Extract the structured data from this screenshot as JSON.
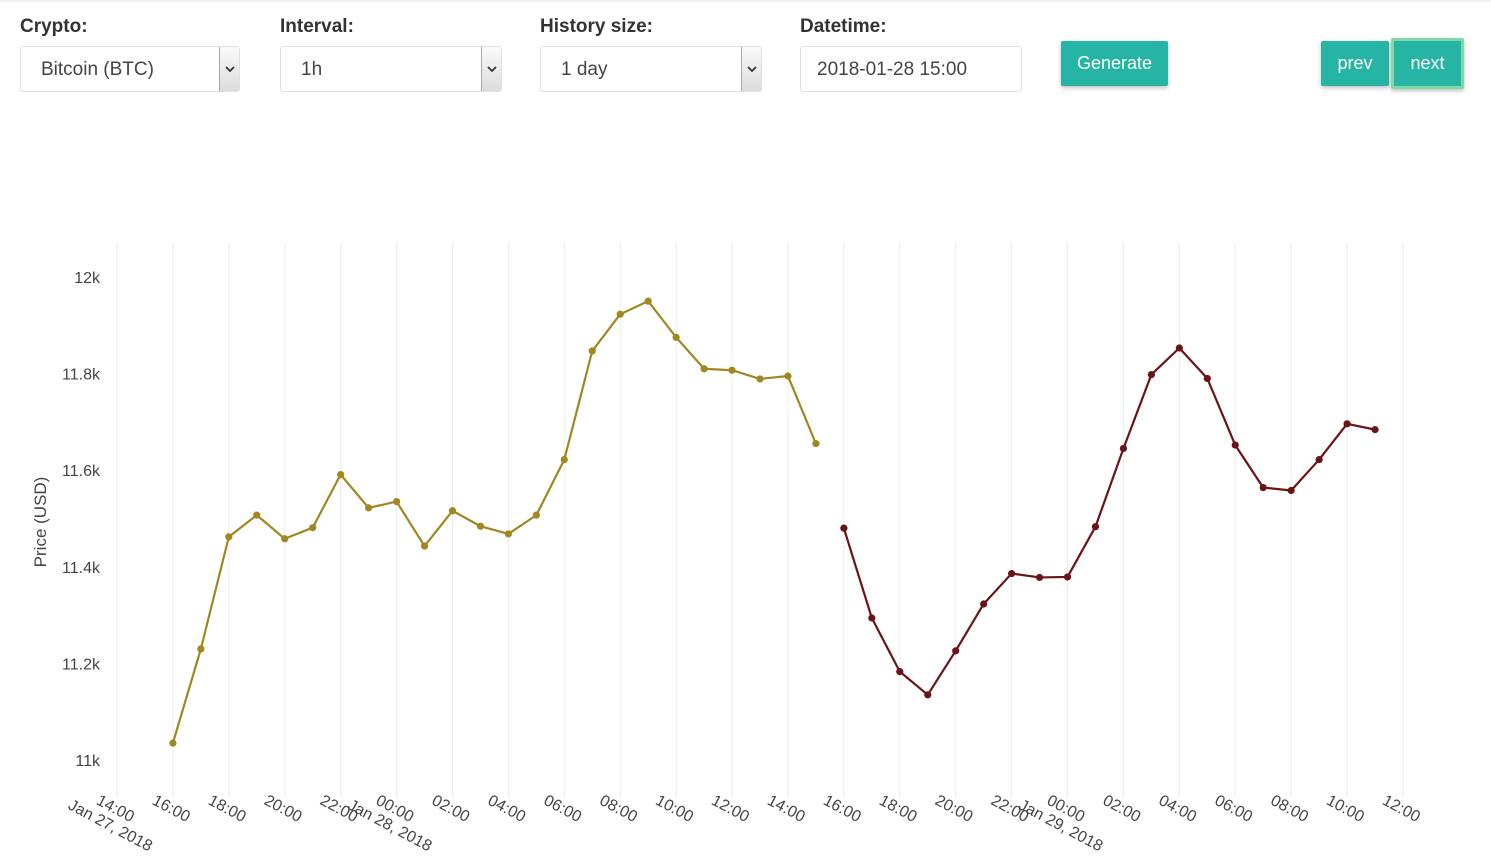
{
  "controls": {
    "crypto": {
      "label": "Crypto:",
      "value": "Bitcoin (BTC)"
    },
    "interval": {
      "label": "Interval:",
      "value": "1h"
    },
    "history": {
      "label": "History size:",
      "value": "1 day"
    },
    "datetime": {
      "label": "Datetime:",
      "value": "2018-01-28 15:00"
    },
    "generate_label": "Generate",
    "prev_label": "prev",
    "next_label": "next"
  },
  "colors": {
    "accent": "#26b5a4",
    "next_border": "#7ed9a6",
    "history_series": "#a08722",
    "future_series": "#6b1416"
  },
  "chart_data": {
    "type": "line",
    "ylabel": "Price (USD)",
    "xlabel": "",
    "ylim": [
      10950,
      12060
    ],
    "yticks": [
      {
        "value": 11000,
        "label": "11k"
      },
      {
        "value": 11200,
        "label": "11.2k"
      },
      {
        "value": 11400,
        "label": "11.4k"
      },
      {
        "value": 11600,
        "label": "11.6k"
      },
      {
        "value": 11800,
        "label": "11.8k"
      },
      {
        "value": 12000,
        "label": "12k"
      }
    ],
    "xlim": [
      "2018-01-27 13:00",
      "2018-01-29 13:00"
    ],
    "xticks": [
      {
        "value": "2018-01-27 14:00",
        "label": "14:00",
        "sublabel": "Jan 27, 2018"
      },
      {
        "value": "2018-01-27 16:00",
        "label": "16:00"
      },
      {
        "value": "2018-01-27 18:00",
        "label": "18:00"
      },
      {
        "value": "2018-01-27 20:00",
        "label": "20:00"
      },
      {
        "value": "2018-01-27 22:00",
        "label": "22:00"
      },
      {
        "value": "2018-01-28 00:00",
        "label": "00:00",
        "sublabel": "Jan 28, 2018"
      },
      {
        "value": "2018-01-28 02:00",
        "label": "02:00"
      },
      {
        "value": "2018-01-28 04:00",
        "label": "04:00"
      },
      {
        "value": "2018-01-28 06:00",
        "label": "06:00"
      },
      {
        "value": "2018-01-28 08:00",
        "label": "08:00"
      },
      {
        "value": "2018-01-28 10:00",
        "label": "10:00"
      },
      {
        "value": "2018-01-28 12:00",
        "label": "12:00"
      },
      {
        "value": "2018-01-28 14:00",
        "label": "14:00"
      },
      {
        "value": "2018-01-28 16:00",
        "label": "16:00"
      },
      {
        "value": "2018-01-28 18:00",
        "label": "18:00"
      },
      {
        "value": "2018-01-28 20:00",
        "label": "20:00"
      },
      {
        "value": "2018-01-28 22:00",
        "label": "22:00"
      },
      {
        "value": "2018-01-29 00:00",
        "label": "00:00",
        "sublabel": "Jan 29, 2018"
      },
      {
        "value": "2018-01-29 02:00",
        "label": "02:00"
      },
      {
        "value": "2018-01-29 04:00",
        "label": "04:00"
      },
      {
        "value": "2018-01-29 06:00",
        "label": "06:00"
      },
      {
        "value": "2018-01-29 08:00",
        "label": "08:00"
      },
      {
        "value": "2018-01-29 10:00",
        "label": "10:00"
      },
      {
        "value": "2018-01-29 12:00",
        "label": "12:00"
      }
    ],
    "grid": "vertical",
    "series": [
      {
        "color": "#a08722",
        "x": [
          "2018-01-27 16:00",
          "2018-01-27 17:00",
          "2018-01-27 18:00",
          "2018-01-27 19:00",
          "2018-01-27 20:00",
          "2018-01-27 21:00",
          "2018-01-27 22:00",
          "2018-01-27 23:00",
          "2018-01-28 00:00",
          "2018-01-28 01:00",
          "2018-01-28 02:00",
          "2018-01-28 03:00",
          "2018-01-28 04:00",
          "2018-01-28 05:00",
          "2018-01-28 06:00",
          "2018-01-28 07:00",
          "2018-01-28 08:00",
          "2018-01-28 09:00",
          "2018-01-28 10:00",
          "2018-01-28 11:00",
          "2018-01-28 12:00",
          "2018-01-28 13:00",
          "2018-01-28 14:00",
          "2018-01-28 15:00"
        ],
        "values": [
          11035,
          11230,
          11462,
          11507,
          11458,
          11481,
          11591,
          11522,
          11535,
          11443,
          11516,
          11484,
          11468,
          11507,
          11622,
          11847,
          11923,
          11950,
          11875,
          11810,
          11807,
          11789,
          11795,
          11655
        ]
      },
      {
        "color": "#6b1416",
        "x": [
          "2018-01-28 16:00",
          "2018-01-28 17:00",
          "2018-01-28 18:00",
          "2018-01-28 19:00",
          "2018-01-28 20:00",
          "2018-01-28 21:00",
          "2018-01-28 22:00",
          "2018-01-28 23:00",
          "2018-01-29 00:00",
          "2018-01-29 01:00",
          "2018-01-29 02:00",
          "2018-01-29 03:00",
          "2018-01-29 04:00",
          "2018-01-29 05:00",
          "2018-01-29 06:00",
          "2018-01-29 07:00",
          "2018-01-29 08:00",
          "2018-01-29 09:00",
          "2018-01-29 10:00",
          "2018-01-29 11:00"
        ],
        "values": [
          11480,
          11294,
          11183,
          11135,
          11226,
          11323,
          11386,
          11378,
          11379,
          11483,
          11645,
          11798,
          11853,
          11790,
          11652,
          11564,
          11558,
          11622,
          11696,
          11684
        ]
      }
    ]
  }
}
